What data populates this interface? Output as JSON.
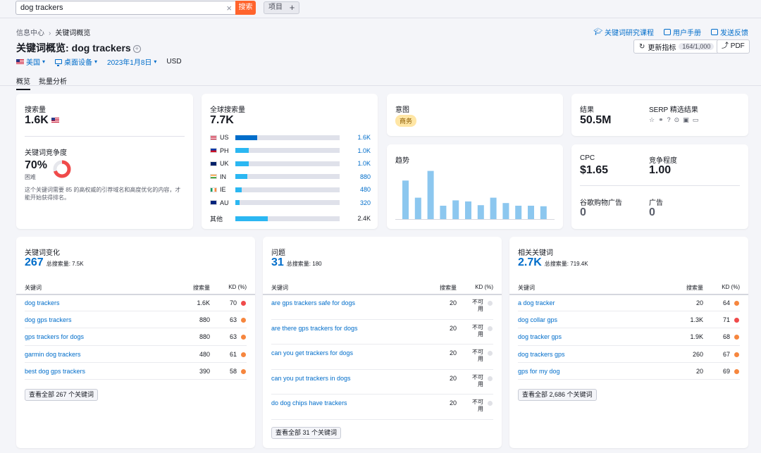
{
  "search": {
    "value": "dog trackers",
    "button": "搜索",
    "project": "项目",
    "plus": "+"
  },
  "breadcrumb": {
    "home": "信息中心",
    "current": "关键词概览"
  },
  "title": {
    "prefix": "关键词概览:",
    "keyword": "dog trackers"
  },
  "filters": {
    "country": "美国",
    "device": "桌面设备",
    "date": "2023年1月8日",
    "currency": "USD"
  },
  "header_links": {
    "course": "关键词研究课程",
    "manual": "用户手册",
    "feedback": "发送反馈"
  },
  "update": {
    "label": "更新指标",
    "count": "164/1,000"
  },
  "pdf": "PDF",
  "tabs": [
    "概览",
    "批量分析"
  ],
  "volume": {
    "label": "搜索量",
    "value": "1.6K",
    "kd_label": "关键词竞争度",
    "kd_value": "70%",
    "kd_level": "困难",
    "kd_fraction": 0.7,
    "kd_desc": "这个关键词需要 85 的高权威的引荐域名和高度优化的内容，才能开始获得排名。"
  },
  "global": {
    "label": "全球搜索量",
    "value": "7.7K",
    "rows": [
      {
        "cc": "US",
        "value": "1.6K",
        "fraction": 0.21,
        "color": "#006dca",
        "flag": "us"
      },
      {
        "cc": "PH",
        "value": "1.0K",
        "fraction": 0.13,
        "color": "#2bb7f2",
        "flag": "ph"
      },
      {
        "cc": "UK",
        "value": "1.0K",
        "fraction": 0.13,
        "color": "#2bb7f2",
        "flag": "uk"
      },
      {
        "cc": "IN",
        "value": "880",
        "fraction": 0.115,
        "color": "#2bb7f2",
        "flag": "in"
      },
      {
        "cc": "IE",
        "value": "480",
        "fraction": 0.063,
        "color": "#2bb7f2",
        "flag": "ie"
      },
      {
        "cc": "AU",
        "value": "320",
        "fraction": 0.042,
        "color": "#2bb7f2",
        "flag": "au"
      }
    ],
    "other": {
      "label": "其他",
      "value": "2.4K",
      "fraction": 0.31,
      "color": "#2bb7f2"
    }
  },
  "intent": {
    "label": "意图",
    "value": "商务"
  },
  "trend": {
    "label": "趋势",
    "values": [
      0.72,
      0.4,
      0.9,
      0.25,
      0.35,
      0.33,
      0.26,
      0.4,
      0.3,
      0.25,
      0.25,
      0.24
    ]
  },
  "results": {
    "label": "结果",
    "value": "50.5M",
    "serp_label": "SERP 精选结果"
  },
  "cpc": {
    "label": "CPC",
    "value": "$1.65",
    "comp_label": "竞争程度",
    "comp_value": "1.00",
    "shopping_label": "谷歌购物广告",
    "shopping_value": "0",
    "ads_label": "广告",
    "ads_value": "0"
  },
  "variations": {
    "title": "关键词变化",
    "count": "267",
    "total": "总搜索量: 7.5K",
    "cols": {
      "kw": "关键词",
      "vol": "搜索量",
      "kd": "KD (%)"
    },
    "rows": [
      {
        "kw": "dog trackers",
        "vol": "1.6K",
        "kd": "70",
        "color": "#f04a4a"
      },
      {
        "kw": "dog gps trackers",
        "vol": "880",
        "kd": "63",
        "color": "#f6863e"
      },
      {
        "kw": "gps trackers for dogs",
        "vol": "880",
        "kd": "63",
        "color": "#f6863e"
      },
      {
        "kw": "garmin dog trackers",
        "vol": "480",
        "kd": "61",
        "color": "#f6863e"
      },
      {
        "kw": "best dog gps trackers",
        "vol": "390",
        "kd": "58",
        "color": "#f6863e"
      }
    ],
    "view_all": "查看全部 267 个关键词"
  },
  "questions": {
    "title": "问题",
    "count": "31",
    "total": "总搜索量: 180",
    "cols": {
      "kw": "关键词",
      "vol": "搜索量",
      "kd": "KD (%)"
    },
    "rows": [
      {
        "kw": "are gps trackers safe for dogs",
        "vol": "20",
        "kd": "不可用"
      },
      {
        "kw": "are there gps trackers for dogs",
        "vol": "20",
        "kd": "不可用"
      },
      {
        "kw": "can you get trackers for dogs",
        "vol": "20",
        "kd": "不可用"
      },
      {
        "kw": "can you put trackers in dogs",
        "vol": "20",
        "kd": "不可用"
      },
      {
        "kw": "do dog chips have trackers",
        "vol": "20",
        "kd": "不可用"
      }
    ],
    "view_all": "查看全部 31 个关键词"
  },
  "related": {
    "title": "相关关键词",
    "count": "2.7K",
    "total": "总搜索量: 719.4K",
    "cols": {
      "kw": "关键词",
      "vol": "搜索量",
      "kd": "KD (%)"
    },
    "rows": [
      {
        "kw": "a dog tracker",
        "vol": "20",
        "kd": "64",
        "color": "#f6863e"
      },
      {
        "kw": "dog collar gps",
        "vol": "1.3K",
        "kd": "71",
        "color": "#f04a4a"
      },
      {
        "kw": "dog tracker gps",
        "vol": "1.9K",
        "kd": "68",
        "color": "#f6863e"
      },
      {
        "kw": "dog trackers gps",
        "vol": "260",
        "kd": "67",
        "color": "#f6863e"
      },
      {
        "kw": "gps for my dog",
        "vol": "20",
        "kd": "69",
        "color": "#f6863e"
      }
    ],
    "view_all": "查看全部 2,686 个关键词"
  }
}
